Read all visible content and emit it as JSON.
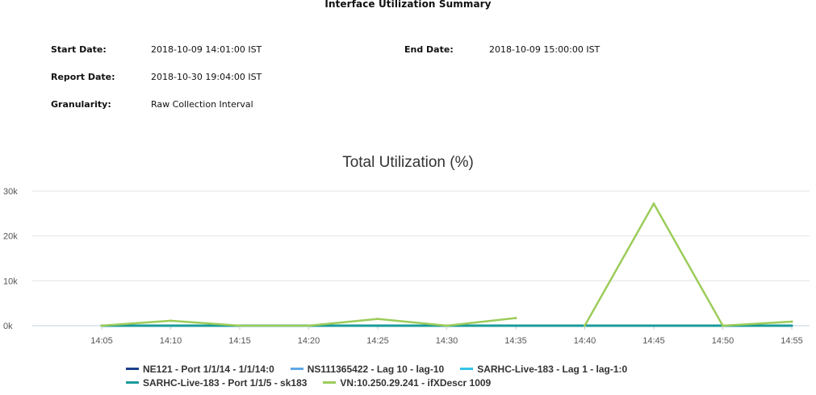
{
  "report": {
    "title": "Interface Utilization Summary",
    "start_date_label": "Start Date:",
    "start_date_value": "2018-10-09 14:01:00 IST",
    "end_date_label": "End Date:",
    "end_date_value": "2018-10-09 15:00:00 IST",
    "report_date_label": "Report Date:",
    "report_date_value": "2018-10-30 19:04:00 IST",
    "granularity_label": "Granularity:",
    "granularity_value": "Raw Collection Interval"
  },
  "chart_data": {
    "type": "line",
    "title": "Total Utilization (%)",
    "xlabel": "",
    "ylabel": "",
    "ylim": [
      0,
      30000
    ],
    "y_ticks": [
      0,
      10000,
      20000,
      30000
    ],
    "y_tick_labels": [
      "0k",
      "10k",
      "20k",
      "30k"
    ],
    "x_ticks": [
      "14:05",
      "14:10",
      "14:15",
      "14:20",
      "14:25",
      "14:30",
      "14:35",
      "14:40",
      "14:45",
      "14:50",
      "14:55"
    ],
    "grid": "horizontal",
    "legend_position": "bottom",
    "series": [
      {
        "name": "NE121 - Port 1/1/14 - 1/1/14:0",
        "color": "#1b3f8b",
        "x": [
          "14:05",
          "14:10",
          "14:15",
          "14:20",
          "14:25",
          "14:30",
          "14:35",
          "14:40",
          "14:45",
          "14:50",
          "14:55"
        ],
        "y": [
          0,
          0,
          0,
          0,
          0,
          0,
          0,
          0,
          0,
          0,
          0
        ]
      },
      {
        "name": "NS111365422 - Lag 10 - lag-10",
        "color": "#5fa8e6",
        "x": [
          "14:05",
          "14:10",
          "14:15",
          "14:20",
          "14:25",
          "14:30",
          "14:35",
          "14:40",
          "14:45",
          "14:50",
          "14:55"
        ],
        "y": [
          0,
          0,
          0,
          0,
          0,
          0,
          0,
          0,
          0,
          0,
          0
        ]
      },
      {
        "name": "SARHC-Live-183 - Lag 1 - lag-1:0",
        "color": "#33c3e8",
        "x": [
          "14:05",
          "14:10",
          "14:15",
          "14:20",
          "14:25",
          "14:30",
          "14:35",
          "14:40",
          "14:45",
          "14:50",
          "14:55"
        ],
        "y": [
          0,
          0,
          0,
          0,
          0,
          0,
          0,
          0,
          0,
          0,
          0
        ]
      },
      {
        "name": "SARHC-Live-183 - Port 1/1/5 - sk183",
        "color": "#1a9a9a",
        "x": [
          "14:05",
          "14:10",
          "14:15",
          "14:20",
          "14:25",
          "14:30",
          "14:35",
          "14:40",
          "14:45",
          "14:50",
          "14:55"
        ],
        "y": [
          0,
          0,
          0,
          0,
          0,
          0,
          0,
          0,
          0,
          0,
          0
        ]
      },
      {
        "name": "VN:10.250.29.241 - ifXDescr 1009",
        "color": "#9ccc5a",
        "segments": [
          {
            "x": [
              "14:05",
              "14:10",
              "14:15",
              "14:20",
              "14:25",
              "14:30",
              "14:35"
            ],
            "y": [
              0,
              1100,
              0,
              0,
              1500,
              0,
              1700
            ]
          },
          {
            "x": [
              "14:40",
              "14:45",
              "14:50",
              "14:55"
            ],
            "y": [
              0,
              27200,
              0,
              900
            ]
          }
        ]
      }
    ]
  }
}
